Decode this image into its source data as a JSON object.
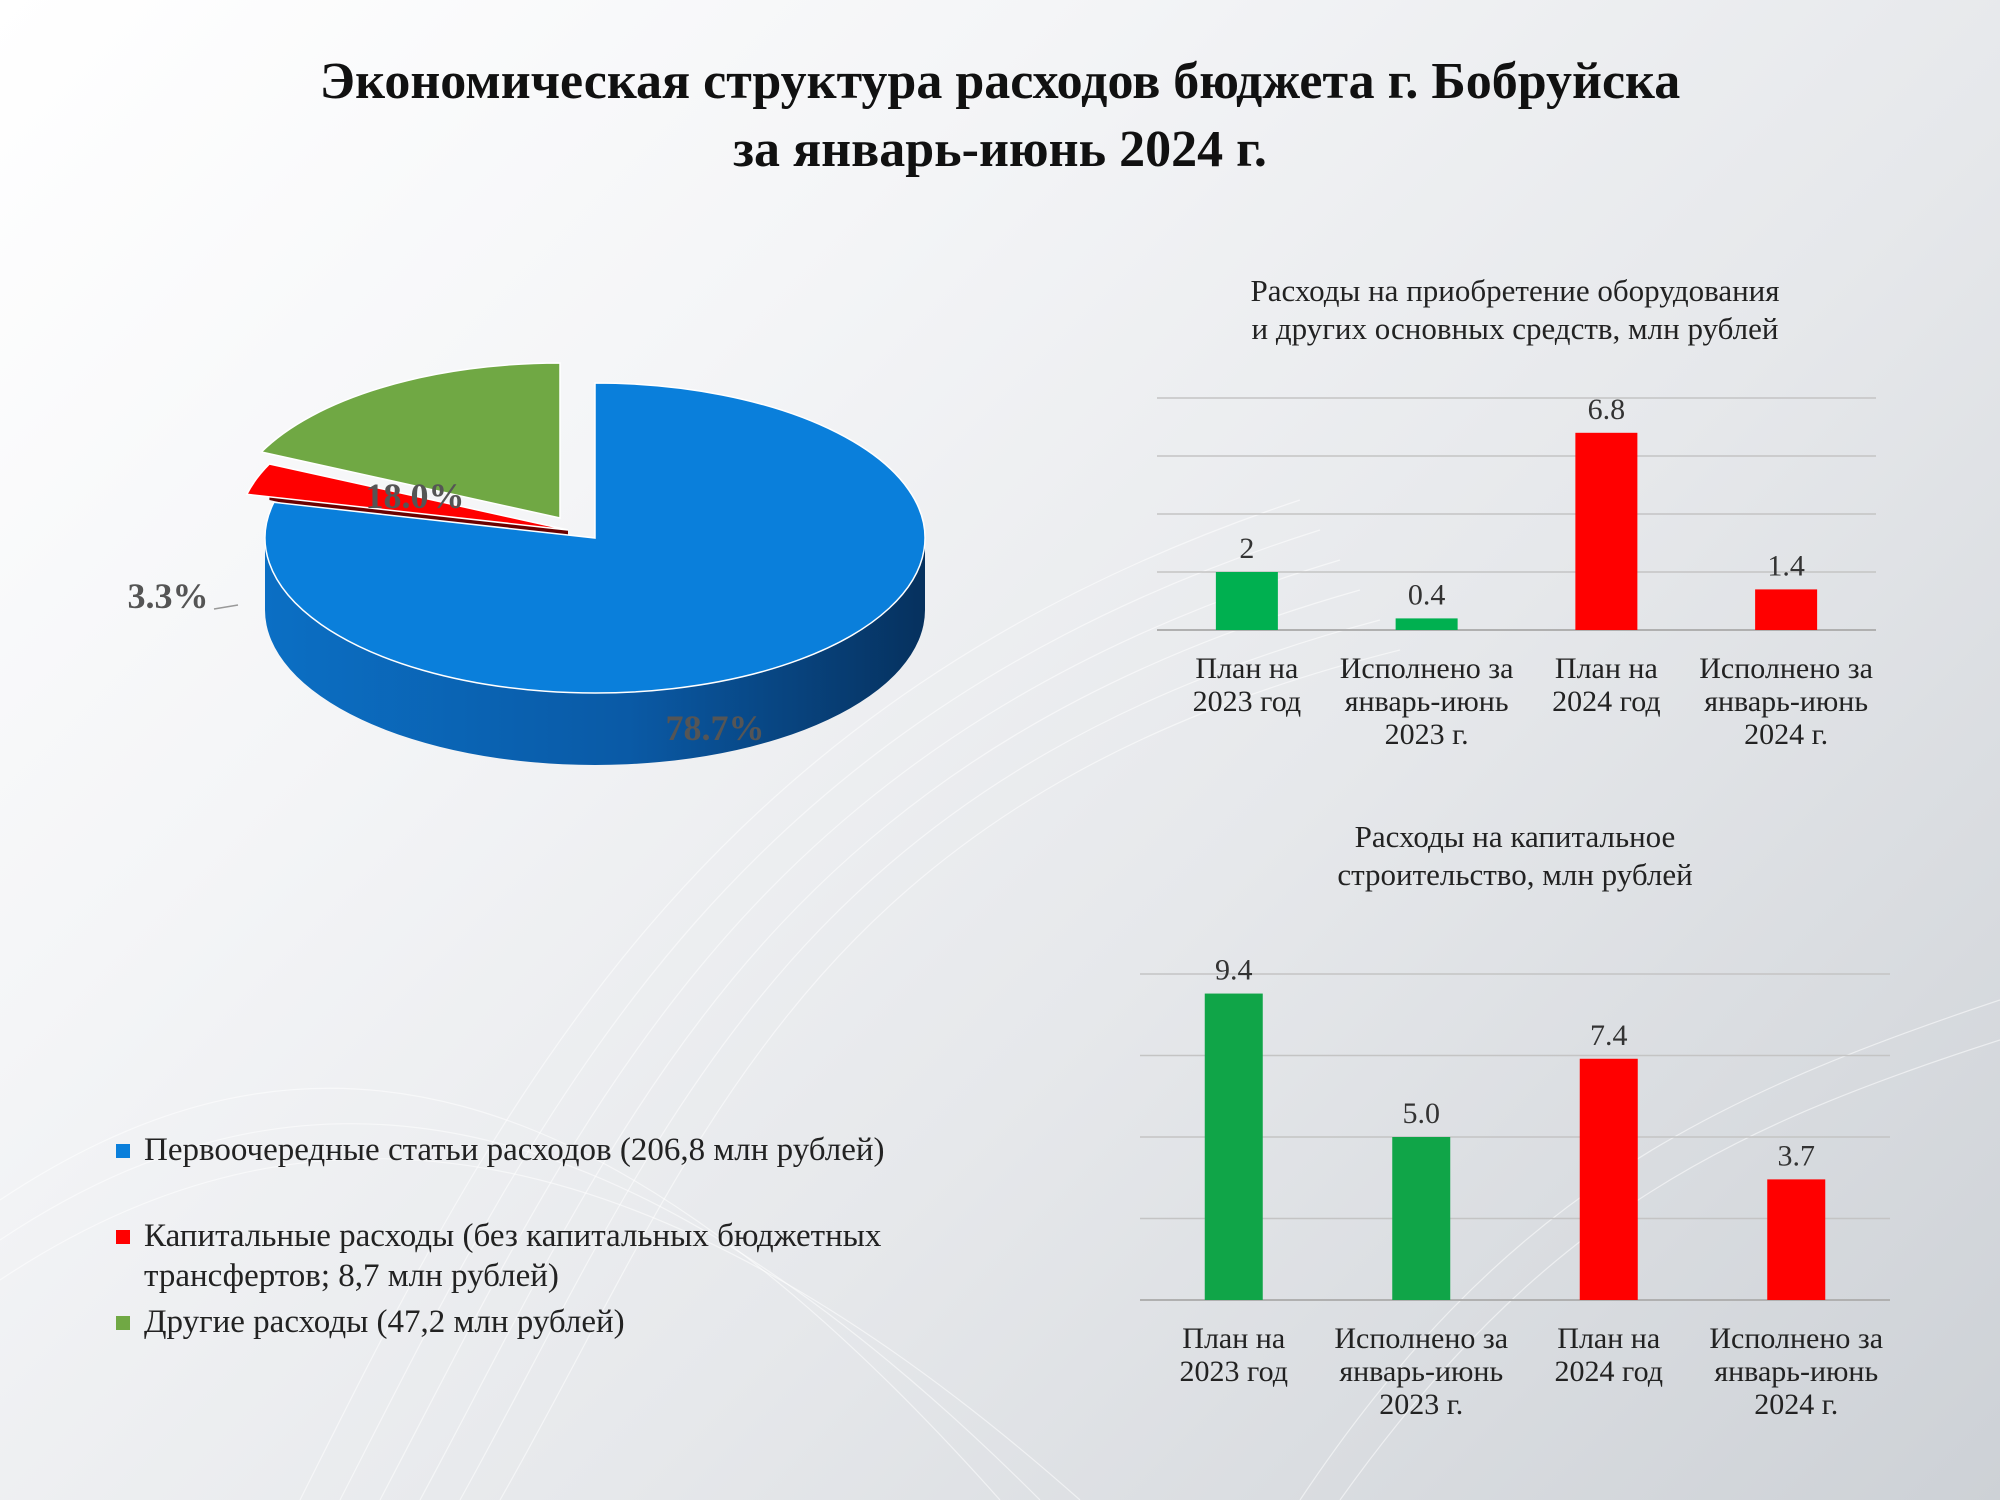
{
  "title_line1": "Экономическая структура расходов бюджета г. Бобруйска",
  "title_line2": "за январь-июнь 2024 г.",
  "colors": {
    "blue": "#0a7fdb",
    "blue_dark": "#0a3f78",
    "red": "#ff0000",
    "red_dark": "#6b0000",
    "green": "#70a844",
    "green_dark": "#2f4a1d",
    "bar_green": "#00b050",
    "bar_green2": "#10a548",
    "bar_red": "#ff0000"
  },
  "chart_data": [
    {
      "type": "pie",
      "labels": [
        "78.7%",
        "3.3%",
        "18.0%"
      ],
      "values": [
        78.7,
        3.3,
        18.0
      ],
      "legend": [
        "Первоочередные статьи расходов (206,8 млн рублей)",
        "Капитальные расходы (без капитальных бюджетных трансфертов; 8,7 млн рублей)",
        "Другие расходы (47,2 млн рублей)"
      ],
      "legend_placement": "bottom-left"
    },
    {
      "type": "bar",
      "title_line1": "Расходы на приобретение оборудования",
      "title_line2": "и других основных средств, млн рублей",
      "categories": [
        [
          "План на",
          "2023 год"
        ],
        [
          "Исполнено за",
          "январь-июнь",
          "2023 г."
        ],
        [
          "План на",
          "2024 год"
        ],
        [
          "Исполнено за",
          "январь-июнь",
          "2024 г."
        ]
      ],
      "values": [
        2,
        0.4,
        6.8,
        1.4
      ],
      "value_labels": [
        "2",
        "0.4",
        "6.8",
        "1.4"
      ],
      "ylim": [
        0,
        8
      ],
      "grid": true
    },
    {
      "type": "bar",
      "title_line1": "Расходы на капитальное",
      "title_line2": "строительство, млн рублей",
      "categories": [
        [
          "План на",
          "2023 год"
        ],
        [
          "Исполнено за",
          "январь-июнь",
          "2023 г."
        ],
        [
          "План на",
          "2024 год"
        ],
        [
          "Исполнено за",
          "январь-июнь",
          "2024 г."
        ]
      ],
      "values": [
        9.4,
        5.0,
        7.4,
        3.7
      ],
      "value_labels": [
        "9.4",
        "5.0",
        "7.4",
        "3.7"
      ],
      "ylim": [
        0,
        10
      ],
      "grid": true
    }
  ]
}
